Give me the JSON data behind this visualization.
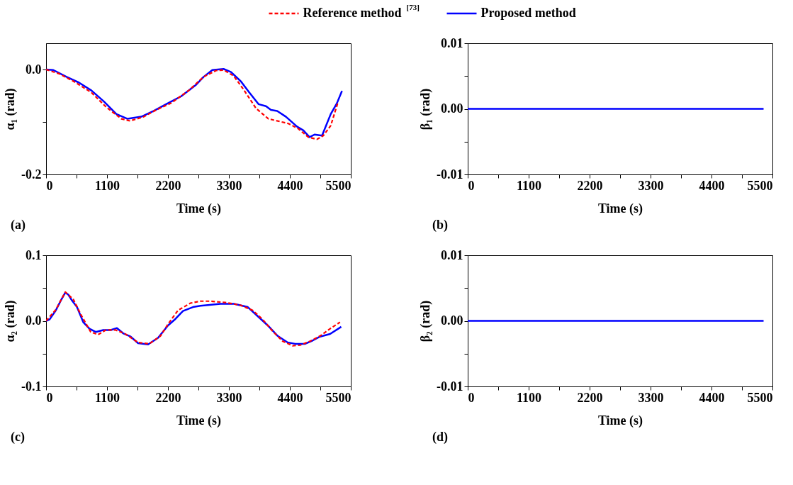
{
  "chart_data": [
    {
      "type": "line",
      "legend": "top",
      "xlabel": "Time (s)",
      "ylabel": "α₁ (rad)",
      "annotations": [
        "(a)"
      ],
      "xlim": [
        0,
        5500
      ],
      "xticks": [
        0,
        {
          "value": 550,
          "label": null
        },
        1100,
        {
          "value": 1650,
          "label": null
        },
        2200,
        {
          "value": 2750,
          "label": null
        },
        3300,
        {
          "value": 3850,
          "label": null
        },
        4400,
        {
          "value": 4950,
          "label": null
        },
        5500
      ],
      "ylim": [
        -0.2,
        0.05
      ],
      "yticks": [
        -0.2,
        {
          "value": -0.1,
          "label": null
        },
        {
          "value": 0,
          "label": "0.0"
        }
      ],
      "series": [
        {
          "name": "Reference method $^{[73]}$",
          "color": "#ff0000",
          "line_style": "dashed",
          "x": [
            0,
            234,
            504,
            819,
            1089,
            1359,
            1516,
            1764,
            1989,
            2259,
            2574,
            2844,
            3069,
            3204,
            3384,
            3564,
            3789,
            4014,
            4374,
            4554,
            4734,
            4891,
            5004,
            5138,
            5273
          ],
          "values": [
            0,
            -0.008,
            -0.023,
            -0.044,
            -0.072,
            -0.094,
            -0.098,
            -0.09,
            -0.077,
            -0.064,
            -0.04,
            -0.014,
            -0.002,
            -0.001,
            -0.012,
            -0.038,
            -0.074,
            -0.094,
            -0.103,
            -0.113,
            -0.129,
            -0.133,
            -0.126,
            -0.107,
            -0.061
          ]
        },
        {
          "name": "Proposed method",
          "color": "#0000ff",
          "line_style": "solid",
          "x": [
            0,
            131,
            369,
            594,
            819,
            1044,
            1269,
            1471,
            1719,
            1944,
            2169,
            2439,
            2709,
            2844,
            3001,
            3204,
            3339,
            3519,
            3654,
            3834,
            3969,
            4059,
            4171,
            4329,
            4531,
            4644,
            4756,
            4846,
            4981,
            5138,
            5251,
            5341
          ],
          "values": [
            0,
            -0.001,
            -0.014,
            -0.025,
            -0.04,
            -0.061,
            -0.085,
            -0.094,
            -0.09,
            -0.079,
            -0.066,
            -0.051,
            -0.029,
            -0.014,
            -0.001,
            0.001,
            -0.005,
            -0.023,
            -0.042,
            -0.066,
            -0.07,
            -0.077,
            -0.079,
            -0.09,
            -0.109,
            -0.116,
            -0.129,
            -0.124,
            -0.126,
            -0.085,
            -0.064,
            -0.041
          ]
        }
      ]
    },
    {
      "type": "line",
      "xlabel": "Time (s)",
      "ylabel": "β₁ (rad)",
      "annotations": [
        "(b)"
      ],
      "xlim": [
        0,
        5500
      ],
      "xticks": [
        0,
        {
          "value": 550,
          "label": null
        },
        1100,
        {
          "value": 1650,
          "label": null
        },
        2200,
        {
          "value": 2750,
          "label": null
        },
        3300,
        {
          "value": 3850,
          "label": null
        },
        4400,
        {
          "value": 4950,
          "label": null
        },
        5500
      ],
      "ylim": [
        -0.01,
        0.01
      ],
      "yticks": [
        -0.01,
        {
          "value": -0.005,
          "label": null
        },
        {
          "value": 0,
          "label": "0.00"
        },
        {
          "value": 0.005,
          "label": null
        },
        0.01
      ],
      "series": [
        {
          "name": "Proposed method",
          "color": "#0000ff",
          "line_style": "solid",
          "x": [
            0,
            5340
          ],
          "values": [
            0,
            0
          ]
        }
      ]
    },
    {
      "type": "line",
      "xlabel": "Time (s)",
      "ylabel": "α₂ (rad)",
      "annotations": [
        "(c)"
      ],
      "xlim": [
        0,
        5500
      ],
      "xticks": [
        0,
        {
          "value": 550,
          "label": null
        },
        1100,
        {
          "value": 1650,
          "label": null
        },
        2200,
        {
          "value": 2750,
          "label": null
        },
        3300,
        {
          "value": 3850,
          "label": null
        },
        4400,
        {
          "value": 4950,
          "label": null
        },
        5500
      ],
      "ylim": [
        -0.1,
        0.1
      ],
      "yticks": [
        -0.1,
        {
          "value": -0.05,
          "label": null
        },
        {
          "value": 0,
          "label": "0.0"
        },
        {
          "value": 0.05,
          "label": null
        },
        0.1
      ],
      "series": [
        {
          "name": "Reference method $^{[73]}$",
          "color": "#ff0000",
          "line_style": "dashed",
          "x": [
            0,
            176,
            347,
            491,
            626,
            806,
            941,
            1076,
            1256,
            1413,
            1661,
            1863,
            2066,
            2201,
            2381,
            2606,
            2786,
            2966,
            3236,
            3506,
            3731,
            3911,
            4091,
            4271,
            4451,
            4586,
            4766,
            4946,
            5126,
            5306
          ],
          "values": [
            0,
            0.017,
            0.044,
            0.033,
            0.01,
            -0.017,
            -0.021,
            -0.014,
            -0.014,
            -0.019,
            -0.033,
            -0.035,
            -0.023,
            -0.005,
            0.016,
            0.027,
            0.03,
            0.03,
            0.028,
            0.024,
            0.016,
            0.002,
            -0.016,
            -0.031,
            -0.038,
            -0.037,
            -0.031,
            -0.023,
            -0.012,
            -0.002
          ]
        },
        {
          "name": "Proposed method",
          "color": "#0000ff",
          "line_style": "solid",
          "x": [
            0,
            63,
            176,
            266,
            347,
            401,
            468,
            558,
            671,
            784,
            896,
            1031,
            1166,
            1279,
            1391,
            1526,
            1661,
            1841,
            2021,
            2201,
            2336,
            2471,
            2651,
            2786,
            2921,
            3146,
            3394,
            3641,
            3821,
            4002,
            4181,
            4361,
            4496,
            4676,
            4811,
            4946,
            5126,
            5328
          ],
          "values": [
            0,
            0.002,
            0.016,
            0.031,
            0.043,
            0.04,
            0.031,
            0.021,
            -0.002,
            -0.012,
            -0.017,
            -0.014,
            -0.014,
            -0.011,
            -0.019,
            -0.024,
            -0.034,
            -0.036,
            -0.026,
            -0.007,
            0.003,
            0.015,
            0.021,
            0.023,
            0.024,
            0.026,
            0.026,
            0.021,
            0.007,
            -0.007,
            -0.023,
            -0.033,
            -0.035,
            -0.035,
            -0.03,
            -0.024,
            -0.02,
            -0.009
          ]
        }
      ]
    },
    {
      "type": "line",
      "xlabel": "Time (s)",
      "ylabel": "β₂ (rad)",
      "annotations": [
        "(d)"
      ],
      "xlim": [
        0,
        5500
      ],
      "xticks": [
        0,
        {
          "value": 550,
          "label": null
        },
        1100,
        {
          "value": 1650,
          "label": null
        },
        2200,
        {
          "value": 2750,
          "label": null
        },
        3300,
        {
          "value": 3850,
          "label": null
        },
        4400,
        {
          "value": 4950,
          "label": null
        },
        5500
      ],
      "ylim": [
        -0.01,
        0.01
      ],
      "yticks": [
        -0.01,
        {
          "value": -0.005,
          "label": null
        },
        {
          "value": 0,
          "label": "0.00"
        },
        {
          "value": 0.005,
          "label": null
        },
        0.01
      ],
      "series": [
        {
          "name": "Proposed method",
          "color": "#0000ff",
          "line_style": "solid",
          "x": [
            0,
            5340
          ],
          "values": [
            0,
            0
          ]
        }
      ]
    }
  ]
}
